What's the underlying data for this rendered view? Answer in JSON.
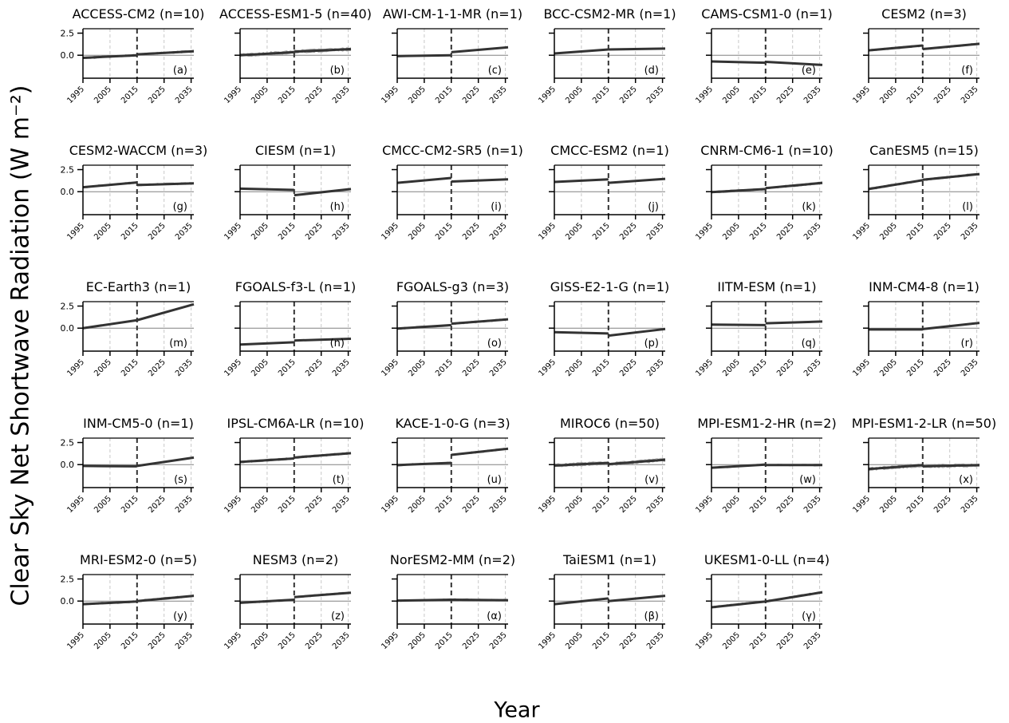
{
  "figure": {
    "ylabel": "Clear Sky Net Shortwave Radiation (W m⁻²)",
    "xlabel": "Year"
  },
  "chart_data": {
    "type": "line",
    "xlim": [
      1995,
      2036
    ],
    "ylim": [
      -2.6,
      3.0
    ],
    "xticks": [
      "1995",
      "2005",
      "2015",
      "2025",
      "2035"
    ],
    "yticks": [
      "2.5",
      "0.0"
    ],
    "vline_year": 2015,
    "grid": "vertical dashed at x ticks",
    "panels": [
      {
        "title": "ACCESS-CM2 (n=10)",
        "label": "(a)",
        "members": 10,
        "hist": [
          [
            1995,
            -0.3
          ],
          [
            2015,
            0.0
          ]
        ],
        "fut": [
          [
            2015,
            0.1
          ],
          [
            2036,
            0.45
          ]
        ]
      },
      {
        "title": "ACCESS-ESM1-5 (n=40)",
        "label": "(b)",
        "members": 40,
        "hist": [
          [
            1995,
            0.0
          ],
          [
            2015,
            0.35
          ]
        ],
        "fut": [
          [
            2015,
            0.4
          ],
          [
            2036,
            0.7
          ]
        ]
      },
      {
        "title": "AWI-CM-1-1-MR (n=1)",
        "label": "(c)",
        "members": 1,
        "hist": [
          [
            1995,
            -0.1
          ],
          [
            2015,
            0.0
          ]
        ],
        "fut": [
          [
            2015,
            0.35
          ],
          [
            2036,
            0.9
          ]
        ]
      },
      {
        "title": "BCC-CSM2-MR (n=1)",
        "label": "(d)",
        "members": 1,
        "hist": [
          [
            1995,
            0.2
          ],
          [
            2015,
            0.65
          ]
        ],
        "fut": [
          [
            2015,
            0.65
          ],
          [
            2036,
            0.75
          ]
        ]
      },
      {
        "title": "CAMS-CSM1-0 (n=1)",
        "label": "(e)",
        "members": 1,
        "hist": [
          [
            1995,
            -0.7
          ],
          [
            2015,
            -0.85
          ]
        ],
        "fut": [
          [
            2015,
            -0.75
          ],
          [
            2036,
            -1.1
          ]
        ]
      },
      {
        "title": "CESM2 (n=3)",
        "label": "(f)",
        "members": 3,
        "hist": [
          [
            1995,
            0.55
          ],
          [
            2015,
            1.1
          ]
        ],
        "fut": [
          [
            2015,
            0.7
          ],
          [
            2036,
            1.3
          ]
        ]
      },
      {
        "title": "CESM2-WACCM (n=3)",
        "label": "(g)",
        "members": 3,
        "hist": [
          [
            1995,
            0.5
          ],
          [
            2015,
            1.05
          ]
        ],
        "fut": [
          [
            2015,
            0.75
          ],
          [
            2036,
            0.95
          ]
        ]
      },
      {
        "title": "CIESM (n=1)",
        "label": "(h)",
        "members": 1,
        "hist": [
          [
            1995,
            0.35
          ],
          [
            2015,
            0.2
          ]
        ],
        "fut": [
          [
            2015,
            -0.4
          ],
          [
            2036,
            0.3
          ]
        ]
      },
      {
        "title": "CMCC-CM2-SR5 (n=1)",
        "label": "(i)",
        "members": 1,
        "hist": [
          [
            1995,
            1.0
          ],
          [
            2015,
            1.55
          ]
        ],
        "fut": [
          [
            2015,
            1.15
          ],
          [
            2036,
            1.4
          ]
        ]
      },
      {
        "title": "CMCC-ESM2 (n=1)",
        "label": "(j)",
        "members": 1,
        "hist": [
          [
            1995,
            1.1
          ],
          [
            2015,
            1.4
          ]
        ],
        "fut": [
          [
            2015,
            1.0
          ],
          [
            2036,
            1.45
          ]
        ]
      },
      {
        "title": "CNRM-CM6-1 (n=10)",
        "label": "(k)",
        "members": 10,
        "hist": [
          [
            1995,
            -0.05
          ],
          [
            2015,
            0.3
          ]
        ],
        "fut": [
          [
            2015,
            0.4
          ],
          [
            2036,
            1.0
          ]
        ]
      },
      {
        "title": "CanESM5 (n=15)",
        "label": "(l)",
        "members": 15,
        "hist": [
          [
            1995,
            0.3
          ],
          [
            2015,
            1.3
          ]
        ],
        "fut": [
          [
            2015,
            1.35
          ],
          [
            2036,
            2.0
          ]
        ]
      },
      {
        "title": "EC-Earth3 (n=1)",
        "label": "(m)",
        "members": 1,
        "hist": [
          [
            1995,
            0.0
          ],
          [
            2015,
            0.9
          ]
        ],
        "fut": [
          [
            2015,
            0.9
          ],
          [
            2036,
            2.7
          ]
        ]
      },
      {
        "title": "FGOALS-f3-L (n=1)",
        "label": "(n)",
        "members": 1,
        "hist": [
          [
            1995,
            -1.85
          ],
          [
            2015,
            -1.6
          ]
        ],
        "fut": [
          [
            2015,
            -1.4
          ],
          [
            2036,
            -1.2
          ]
        ]
      },
      {
        "title": "FGOALS-g3 (n=3)",
        "label": "(o)",
        "members": 3,
        "hist": [
          [
            1995,
            -0.05
          ],
          [
            2015,
            0.35
          ]
        ],
        "fut": [
          [
            2015,
            0.5
          ],
          [
            2036,
            1.0
          ]
        ]
      },
      {
        "title": "GISS-E2-1-G (n=1)",
        "label": "(p)",
        "members": 1,
        "hist": [
          [
            1995,
            -0.45
          ],
          [
            2015,
            -0.6
          ]
        ],
        "fut": [
          [
            2015,
            -0.85
          ],
          [
            2036,
            -0.1
          ]
        ]
      },
      {
        "title": "IITM-ESM (n=1)",
        "label": "(q)",
        "members": 1,
        "hist": [
          [
            1995,
            0.4
          ],
          [
            2015,
            0.35
          ]
        ],
        "fut": [
          [
            2015,
            0.55
          ],
          [
            2036,
            0.75
          ]
        ]
      },
      {
        "title": "INM-CM4-8 (n=1)",
        "label": "(r)",
        "members": 1,
        "hist": [
          [
            1995,
            -0.15
          ],
          [
            2015,
            -0.15
          ]
        ],
        "fut": [
          [
            2015,
            -0.1
          ],
          [
            2036,
            0.6
          ]
        ]
      },
      {
        "title": "INM-CM5-0 (n=1)",
        "label": "(s)",
        "members": 1,
        "hist": [
          [
            1995,
            -0.15
          ],
          [
            2015,
            -0.2
          ]
        ],
        "fut": [
          [
            2015,
            -0.15
          ],
          [
            2036,
            0.8
          ]
        ]
      },
      {
        "title": "IPSL-CM6A-LR (n=10)",
        "label": "(t)",
        "members": 10,
        "hist": [
          [
            1995,
            0.3
          ],
          [
            2015,
            0.7
          ]
        ],
        "fut": [
          [
            2015,
            0.8
          ],
          [
            2036,
            1.3
          ]
        ]
      },
      {
        "title": "KACE-1-0-G (n=3)",
        "label": "(u)",
        "members": 3,
        "hist": [
          [
            1995,
            -0.05
          ],
          [
            2015,
            0.2
          ]
        ],
        "fut": [
          [
            2015,
            1.1
          ],
          [
            2036,
            1.8
          ]
        ]
      },
      {
        "title": "MIROC6 (n=50)",
        "label": "(v)",
        "members": 50,
        "hist": [
          [
            1995,
            -0.1
          ],
          [
            2015,
            0.2
          ]
        ],
        "fut": [
          [
            2015,
            0.05
          ],
          [
            2036,
            0.55
          ]
        ]
      },
      {
        "title": "MPI-ESM1-2-HR (n=2)",
        "label": "(w)",
        "members": 2,
        "hist": [
          [
            1995,
            -0.35
          ],
          [
            2015,
            0.0
          ]
        ],
        "fut": [
          [
            2015,
            -0.05
          ],
          [
            2036,
            -0.05
          ]
        ]
      },
      {
        "title": "MPI-ESM1-2-LR (n=50)",
        "label": "(x)",
        "members": 50,
        "hist": [
          [
            1995,
            -0.5
          ],
          [
            2015,
            -0.05
          ]
        ],
        "fut": [
          [
            2015,
            -0.2
          ],
          [
            2036,
            -0.05
          ]
        ]
      },
      {
        "title": "MRI-ESM2-0 (n=5)",
        "label": "(y)",
        "members": 5,
        "hist": [
          [
            1995,
            -0.35
          ],
          [
            2015,
            -0.05
          ]
        ],
        "fut": [
          [
            2015,
            0.0
          ],
          [
            2036,
            0.6
          ]
        ]
      },
      {
        "title": "NESM3 (n=2)",
        "label": "(z)",
        "members": 2,
        "hist": [
          [
            1995,
            -0.2
          ],
          [
            2015,
            0.15
          ]
        ],
        "fut": [
          [
            2015,
            0.45
          ],
          [
            2036,
            0.95
          ]
        ]
      },
      {
        "title": "NorESM2-MM (n=2)",
        "label": "(α)",
        "members": 2,
        "hist": [
          [
            1995,
            0.05
          ],
          [
            2015,
            0.15
          ]
        ],
        "fut": [
          [
            2015,
            0.15
          ],
          [
            2036,
            0.1
          ]
        ]
      },
      {
        "title": "TaiESM1 (n=1)",
        "label": "(β)",
        "members": 1,
        "hist": [
          [
            1995,
            -0.35
          ],
          [
            2015,
            0.3
          ]
        ],
        "fut": [
          [
            2015,
            0.0
          ],
          [
            2036,
            0.6
          ]
        ]
      },
      {
        "title": "UKESM1-0-LL (n=4)",
        "label": "(γ)",
        "members": 4,
        "hist": [
          [
            1995,
            -0.7
          ],
          [
            2015,
            -0.05
          ]
        ],
        "fut": [
          [
            2015,
            -0.05
          ],
          [
            2036,
            1.0
          ]
        ]
      }
    ]
  }
}
